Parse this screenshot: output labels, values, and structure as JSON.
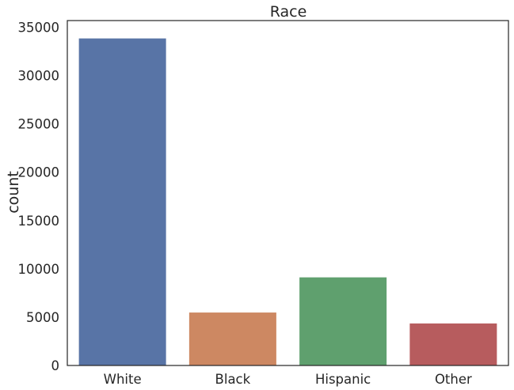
{
  "chart_data": {
    "type": "bar",
    "title": "Race",
    "xlabel": "",
    "ylabel": "count",
    "categories": [
      "White",
      "Black",
      "Hispanic",
      "Other"
    ],
    "values": [
      33850,
      5480,
      9120,
      4350
    ],
    "colors": [
      "#5874a6",
      "#cd8862",
      "#5fa06e",
      "#b75c5e"
    ],
    "ylim": [
      0,
      35700
    ],
    "yticks": [
      0,
      5000,
      10000,
      15000,
      20000,
      25000,
      30000,
      35000
    ],
    "grid": false
  }
}
